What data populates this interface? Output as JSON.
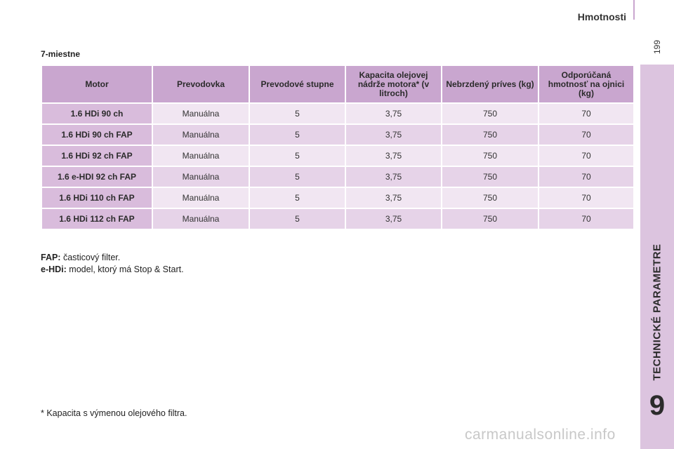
{
  "header": {
    "title": "Hmotnosti",
    "page_number": "199"
  },
  "side_tab": {
    "label": "TECHNICKÉ PARAMETRE",
    "chapter": "9"
  },
  "section": {
    "title": "7-miestne"
  },
  "table": {
    "headers": [
      "Motor",
      "Prevodovka",
      "Prevodové stupne",
      "Kapacita olejovej nádrže motora* (v litroch)",
      "Nebrzdený príves (kg)",
      "Odporúčaná hmotnosť na ojnici (kg)"
    ],
    "rows": [
      [
        "1.6 HDi 90 ch",
        "Manuálna",
        "5",
        "3,75",
        "750",
        "70"
      ],
      [
        "1.6 HDi 90 ch FAP",
        "Manuálna",
        "5",
        "3,75",
        "750",
        "70"
      ],
      [
        "1.6 HDi 92 ch FAP",
        "Manuálna",
        "5",
        "3,75",
        "750",
        "70"
      ],
      [
        "1.6 e-HDI 92 ch FAP",
        "Manuálna",
        "5",
        "3,75",
        "750",
        "70"
      ],
      [
        "1.6 HDi 110 ch FAP",
        "Manuálna",
        "5",
        "3,75",
        "750",
        "70"
      ],
      [
        "1.6 HDi 112 ch FAP",
        "Manuálna",
        "5",
        "3,75",
        "750",
        "70"
      ]
    ]
  },
  "notes": [
    {
      "term": "FAP:",
      "text": "časticový filter."
    },
    {
      "term": "e-HDi:",
      "text": "model, ktorý má Stop & Start."
    }
  ],
  "footnote": "* Kapacita s výmenou olejového filtra.",
  "watermark": "carmanualsonline.info",
  "colors": {
    "header_cell": "#c9a6cf",
    "motor_cell": "#d9bcdc",
    "row_light": "#f1e6f2",
    "row_dark": "#e6d3e8",
    "side_tab": "#dcc4df"
  }
}
